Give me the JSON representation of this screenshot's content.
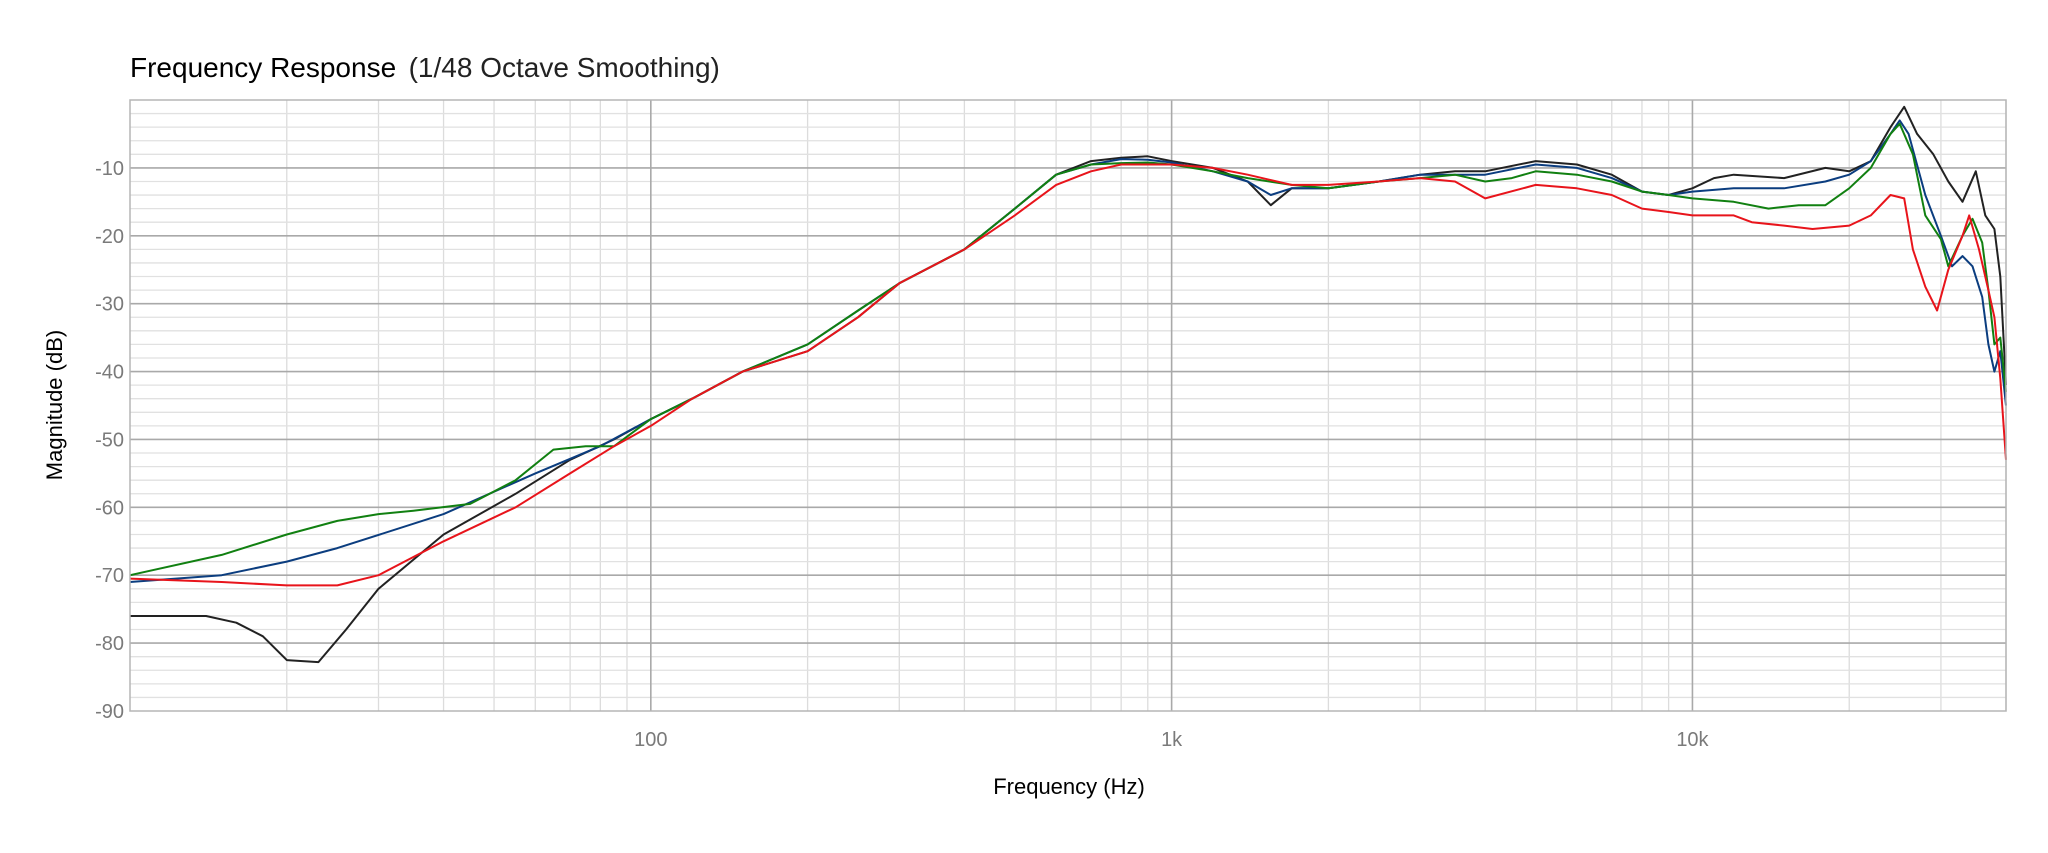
{
  "chart_data": {
    "type": "line",
    "title": "Frequency Response",
    "subtitle": "(1/48 Octave Smoothing)",
    "xlabel": "Frequency (Hz)",
    "ylabel": "Magnitude (dB)",
    "xscale": "log",
    "xlim": [
      10,
      40000
    ],
    "ylim": [
      -90,
      0
    ],
    "grid": true,
    "legend": "none",
    "x_ticks": [
      {
        "value": 100,
        "label": "100"
      },
      {
        "value": 1000,
        "label": "1k"
      },
      {
        "value": 10000,
        "label": "10k"
      }
    ],
    "y_ticks": [
      {
        "value": -10,
        "label": "-10"
      },
      {
        "value": -20,
        "label": "-20"
      },
      {
        "value": -30,
        "label": "-30"
      },
      {
        "value": -40,
        "label": "-40"
      },
      {
        "value": -50,
        "label": "-50"
      },
      {
        "value": -60,
        "label": "-60"
      },
      {
        "value": -70,
        "label": "-70"
      },
      {
        "value": -80,
        "label": "-80"
      },
      {
        "value": -90,
        "label": "-90"
      }
    ],
    "series": [
      {
        "color": "#222222",
        "points": [
          [
            10,
            -76
          ],
          [
            14,
            -76
          ],
          [
            16,
            -77
          ],
          [
            18,
            -79
          ],
          [
            20,
            -82.5
          ],
          [
            23,
            -82.8
          ],
          [
            26,
            -78
          ],
          [
            30,
            -72
          ],
          [
            40,
            -64
          ],
          [
            55,
            -58
          ],
          [
            70,
            -53
          ],
          [
            85,
            -50
          ],
          [
            100,
            -47
          ],
          [
            120,
            -44
          ],
          [
            150,
            -40
          ],
          [
            200,
            -37
          ],
          [
            250,
            -32
          ],
          [
            300,
            -27
          ],
          [
            400,
            -22
          ],
          [
            500,
            -16
          ],
          [
            600,
            -11
          ],
          [
            700,
            -9
          ],
          [
            800,
            -8.5
          ],
          [
            900,
            -8.3
          ],
          [
            1000,
            -9
          ],
          [
            1200,
            -10
          ],
          [
            1400,
            -12
          ],
          [
            1550,
            -15.5
          ],
          [
            1700,
            -13
          ],
          [
            2000,
            -13
          ],
          [
            2500,
            -12
          ],
          [
            3000,
            -11
          ],
          [
            3500,
            -10.5
          ],
          [
            4000,
            -10.5
          ],
          [
            5000,
            -9
          ],
          [
            6000,
            -9.5
          ],
          [
            7000,
            -11
          ],
          [
            8000,
            -13.5
          ],
          [
            9000,
            -14
          ],
          [
            10000,
            -13
          ],
          [
            11000,
            -11.5
          ],
          [
            12000,
            -11
          ],
          [
            15000,
            -11.5
          ],
          [
            18000,
            -10
          ],
          [
            20000,
            -10.5
          ],
          [
            22000,
            -9
          ],
          [
            24000,
            -4
          ],
          [
            25500,
            -1
          ],
          [
            27000,
            -5
          ],
          [
            29000,
            -8
          ],
          [
            31000,
            -12
          ],
          [
            33000,
            -15
          ],
          [
            35000,
            -10.5
          ],
          [
            36500,
            -17
          ],
          [
            38000,
            -19
          ],
          [
            39000,
            -26
          ],
          [
            40000,
            -42
          ]
        ]
      },
      {
        "color": "#0b3d7f",
        "points": [
          [
            10,
            -71
          ],
          [
            15,
            -70
          ],
          [
            20,
            -68
          ],
          [
            25,
            -66
          ],
          [
            40,
            -61
          ],
          [
            60,
            -55
          ],
          [
            80,
            -51
          ],
          [
            100,
            -47
          ],
          [
            120,
            -44
          ],
          [
            150,
            -40
          ],
          [
            200,
            -36
          ],
          [
            250,
            -31
          ],
          [
            300,
            -27
          ],
          [
            400,
            -22
          ],
          [
            500,
            -16
          ],
          [
            600,
            -11
          ],
          [
            700,
            -9.5
          ],
          [
            800,
            -8.7
          ],
          [
            900,
            -8.8
          ],
          [
            1000,
            -9.2
          ],
          [
            1200,
            -10.5
          ],
          [
            1400,
            -12
          ],
          [
            1550,
            -14
          ],
          [
            1700,
            -13
          ],
          [
            2000,
            -13
          ],
          [
            2500,
            -12
          ],
          [
            3000,
            -11
          ],
          [
            3500,
            -11
          ],
          [
            4000,
            -11
          ],
          [
            5000,
            -9.5
          ],
          [
            6000,
            -10
          ],
          [
            7000,
            -11.5
          ],
          [
            8000,
            -13.5
          ],
          [
            9000,
            -14
          ],
          [
            10000,
            -13.5
          ],
          [
            12000,
            -13
          ],
          [
            15000,
            -13
          ],
          [
            18000,
            -12
          ],
          [
            20000,
            -11
          ],
          [
            22000,
            -9
          ],
          [
            24000,
            -5
          ],
          [
            25000,
            -3
          ],
          [
            26000,
            -5
          ],
          [
            28000,
            -14
          ],
          [
            30000,
            -20
          ],
          [
            31500,
            -24.5
          ],
          [
            33000,
            -23
          ],
          [
            34500,
            -24.5
          ],
          [
            36000,
            -29
          ],
          [
            37000,
            -36
          ],
          [
            38000,
            -40
          ],
          [
            39000,
            -37
          ],
          [
            40000,
            -45
          ]
        ]
      },
      {
        "color": "#118011",
        "points": [
          [
            10,
            -70
          ],
          [
            15,
            -67
          ],
          [
            20,
            -64
          ],
          [
            25,
            -62
          ],
          [
            30,
            -61
          ],
          [
            35,
            -60.5
          ],
          [
            45,
            -59.5
          ],
          [
            55,
            -56
          ],
          [
            65,
            -51.5
          ],
          [
            75,
            -51
          ],
          [
            85,
            -51
          ],
          [
            100,
            -47
          ],
          [
            120,
            -44
          ],
          [
            150,
            -40
          ],
          [
            200,
            -36
          ],
          [
            250,
            -31
          ],
          [
            300,
            -27
          ],
          [
            400,
            -22
          ],
          [
            500,
            -16
          ],
          [
            600,
            -11
          ],
          [
            700,
            -9.5
          ],
          [
            800,
            -9.3
          ],
          [
            900,
            -9.2
          ],
          [
            1000,
            -9.5
          ],
          [
            1200,
            -10.5
          ],
          [
            1400,
            -11.5
          ],
          [
            1700,
            -12.5
          ],
          [
            2000,
            -13
          ],
          [
            2500,
            -12
          ],
          [
            3000,
            -11.5
          ],
          [
            3500,
            -11
          ],
          [
            4000,
            -12
          ],
          [
            4500,
            -11.5
          ],
          [
            5000,
            -10.5
          ],
          [
            6000,
            -11
          ],
          [
            7000,
            -12
          ],
          [
            8000,
            -13.5
          ],
          [
            9000,
            -14
          ],
          [
            10000,
            -14.5
          ],
          [
            12000,
            -15
          ],
          [
            14000,
            -16
          ],
          [
            16000,
            -15.5
          ],
          [
            18000,
            -15.5
          ],
          [
            20000,
            -13
          ],
          [
            22000,
            -10
          ],
          [
            24000,
            -5
          ],
          [
            25000,
            -3.5
          ],
          [
            26500,
            -8
          ],
          [
            28000,
            -17
          ],
          [
            30000,
            -20.5
          ],
          [
            31000,
            -24.5
          ],
          [
            33000,
            -20
          ],
          [
            34500,
            -17.5
          ],
          [
            36000,
            -21
          ],
          [
            37000,
            -28
          ],
          [
            38000,
            -36
          ],
          [
            39000,
            -35
          ],
          [
            40000,
            -43
          ]
        ]
      },
      {
        "color": "#e8141b",
        "points": [
          [
            10,
            -70.5
          ],
          [
            15,
            -71
          ],
          [
            20,
            -71.5
          ],
          [
            25,
            -71.5
          ],
          [
            30,
            -70
          ],
          [
            40,
            -65
          ],
          [
            55,
            -60
          ],
          [
            70,
            -55
          ],
          [
            85,
            -51
          ],
          [
            100,
            -48
          ],
          [
            120,
            -44
          ],
          [
            150,
            -40
          ],
          [
            200,
            -37
          ],
          [
            250,
            -32
          ],
          [
            300,
            -27
          ],
          [
            400,
            -22
          ],
          [
            500,
            -17
          ],
          [
            600,
            -12.5
          ],
          [
            700,
            -10.5
          ],
          [
            800,
            -9.5
          ],
          [
            900,
            -9.5
          ],
          [
            1000,
            -9.5
          ],
          [
            1200,
            -10
          ],
          [
            1400,
            -11
          ],
          [
            1700,
            -12.5
          ],
          [
            2000,
            -12.5
          ],
          [
            2500,
            -12
          ],
          [
            3000,
            -11.5
          ],
          [
            3500,
            -12
          ],
          [
            4000,
            -14.5
          ],
          [
            5000,
            -12.5
          ],
          [
            6000,
            -13
          ],
          [
            7000,
            -14
          ],
          [
            8000,
            -16
          ],
          [
            9000,
            -16.5
          ],
          [
            10000,
            -17
          ],
          [
            12000,
            -17
          ],
          [
            13000,
            -18
          ],
          [
            15000,
            -18.5
          ],
          [
            17000,
            -19
          ],
          [
            20000,
            -18.5
          ],
          [
            22000,
            -17
          ],
          [
            24000,
            -14
          ],
          [
            25500,
            -14.5
          ],
          [
            26500,
            -22
          ],
          [
            28000,
            -27.5
          ],
          [
            29500,
            -31
          ],
          [
            31000,
            -25
          ],
          [
            33000,
            -20
          ],
          [
            34000,
            -17
          ],
          [
            35500,
            -22
          ],
          [
            37000,
            -28
          ],
          [
            38000,
            -32
          ],
          [
            39000,
            -41
          ],
          [
            40000,
            -53
          ]
        ]
      }
    ]
  }
}
